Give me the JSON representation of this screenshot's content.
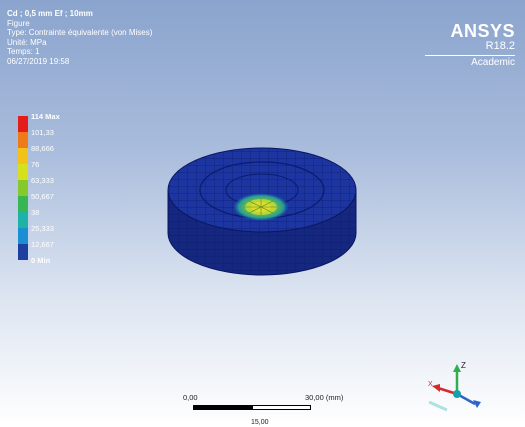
{
  "info": {
    "title": "Cd ; 0,5 mm Ef ; 10mm",
    "line2": "Figure",
    "line3": "Type: Contrainte équivalente (von Mises)",
    "line4": "Unité: MPa",
    "line5": "Temps: 1",
    "line6": "06/27/2019 19:58"
  },
  "brand": {
    "name": "ANSYS",
    "version": "R18.2",
    "edition": "Academic"
  },
  "legend": {
    "labels": [
      "114 Max",
      "101,33",
      "88,666",
      "76",
      "63,333",
      "50,667",
      "38",
      "25,333",
      "12,667",
      "0 Min"
    ],
    "colors": [
      "#e41c1c",
      "#ef7a1a",
      "#f2c21b",
      "#d6e11d",
      "#86c92d",
      "#37b653",
      "#1fb3a7",
      "#1b8fd3",
      "#1f3f9e"
    ]
  },
  "scale": {
    "start": "0,00",
    "end": "30,00 (mm)",
    "mid": "15,00"
  },
  "triad": {
    "z": "Z",
    "x": "X"
  }
}
